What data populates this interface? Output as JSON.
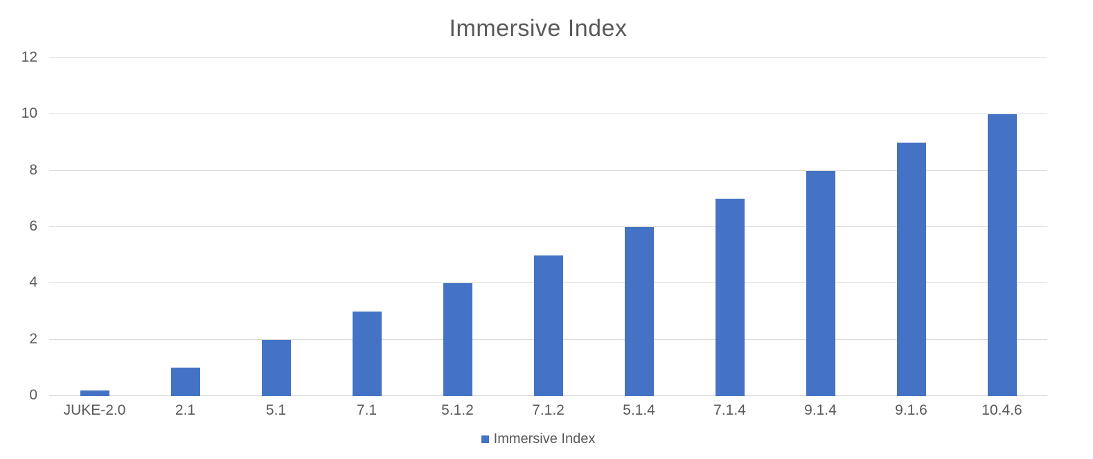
{
  "chart_data": {
    "type": "bar",
    "title": "Immersive Index",
    "categories": [
      "JUKE-2.0",
      "2.1",
      "5.1",
      "7.1",
      "5.1.2",
      "7.1.2",
      "5.1.4",
      "7.1.4",
      "9.1.4",
      "9.1.6",
      "10.4.6"
    ],
    "values": [
      0.2,
      1,
      2,
      3,
      4,
      5,
      6,
      7,
      8,
      9,
      10
    ],
    "series": [
      {
        "name": "Immersive Index",
        "values": [
          0.2,
          1,
          2,
          3,
          4,
          5,
          6,
          7,
          8,
          9,
          10
        ]
      }
    ],
    "xlabel": "",
    "ylabel": "",
    "ylim": [
      0,
      12
    ],
    "yticks": [
      0,
      2,
      4,
      6,
      8,
      10,
      12
    ],
    "grid": true,
    "legend": {
      "position": "bottom",
      "label": "Immersive Index"
    },
    "colors": {
      "bar": "#4472C4",
      "title_text": "#595959",
      "axis_text": "#595959",
      "gridline": "#D9D9D9",
      "background": "#FFFFFF"
    }
  }
}
